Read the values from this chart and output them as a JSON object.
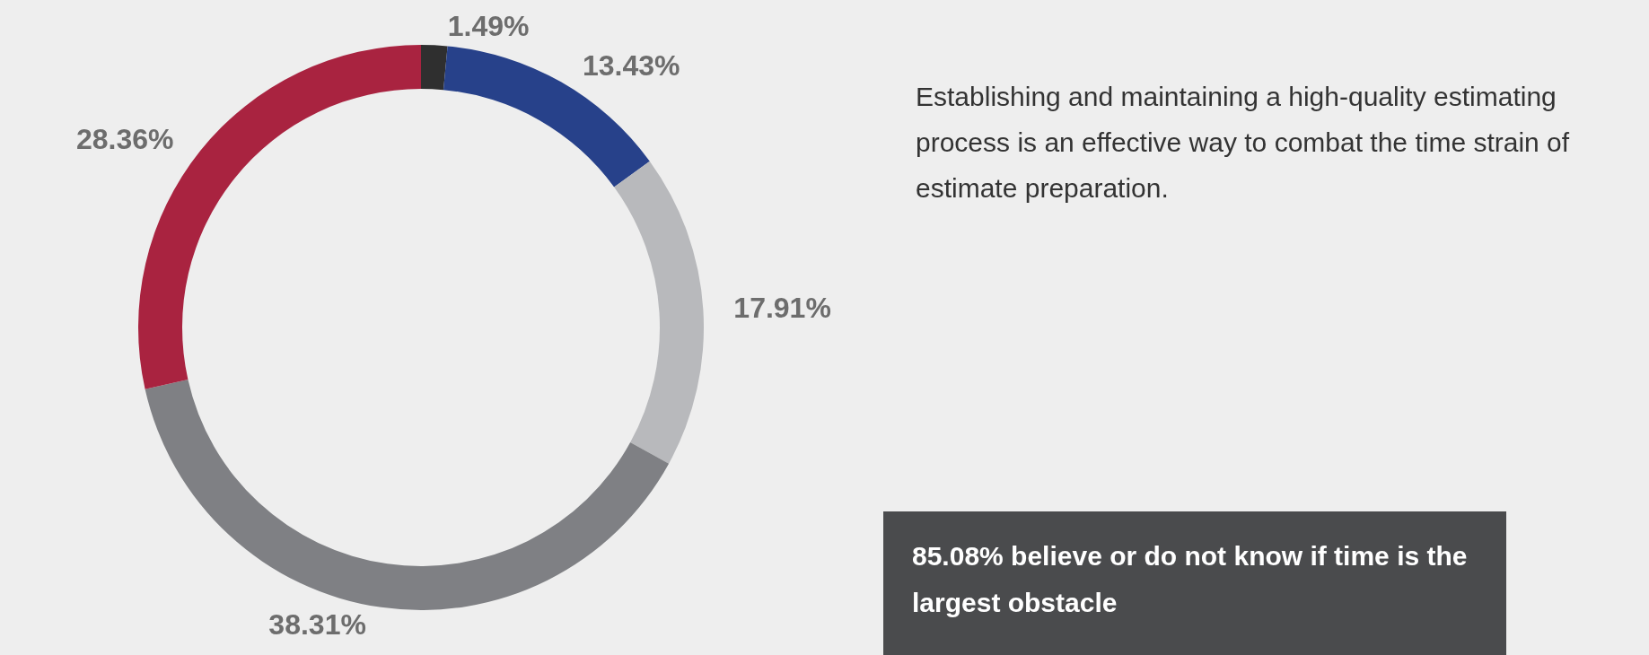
{
  "chart_data": {
    "type": "donut",
    "categories": [
      null,
      null,
      null,
      null,
      null
    ],
    "values": [
      1.49,
      13.43,
      17.91,
      38.31,
      28.36
    ],
    "value_labels": [
      "1.49%",
      "13.43%",
      "17.91%",
      "38.31%",
      "28.36%"
    ],
    "colors": [
      "#2f2f2f",
      "#27418a",
      "#b8b9bc",
      "#7f8084",
      "#a92340"
    ],
    "annotations": [
      "Establishing and maintaining a high-quality estimating process is an effective way to combat the time strain of estimate preparation.",
      "85.08% believe or do not know if time is the largest obstacle"
    ]
  }
}
